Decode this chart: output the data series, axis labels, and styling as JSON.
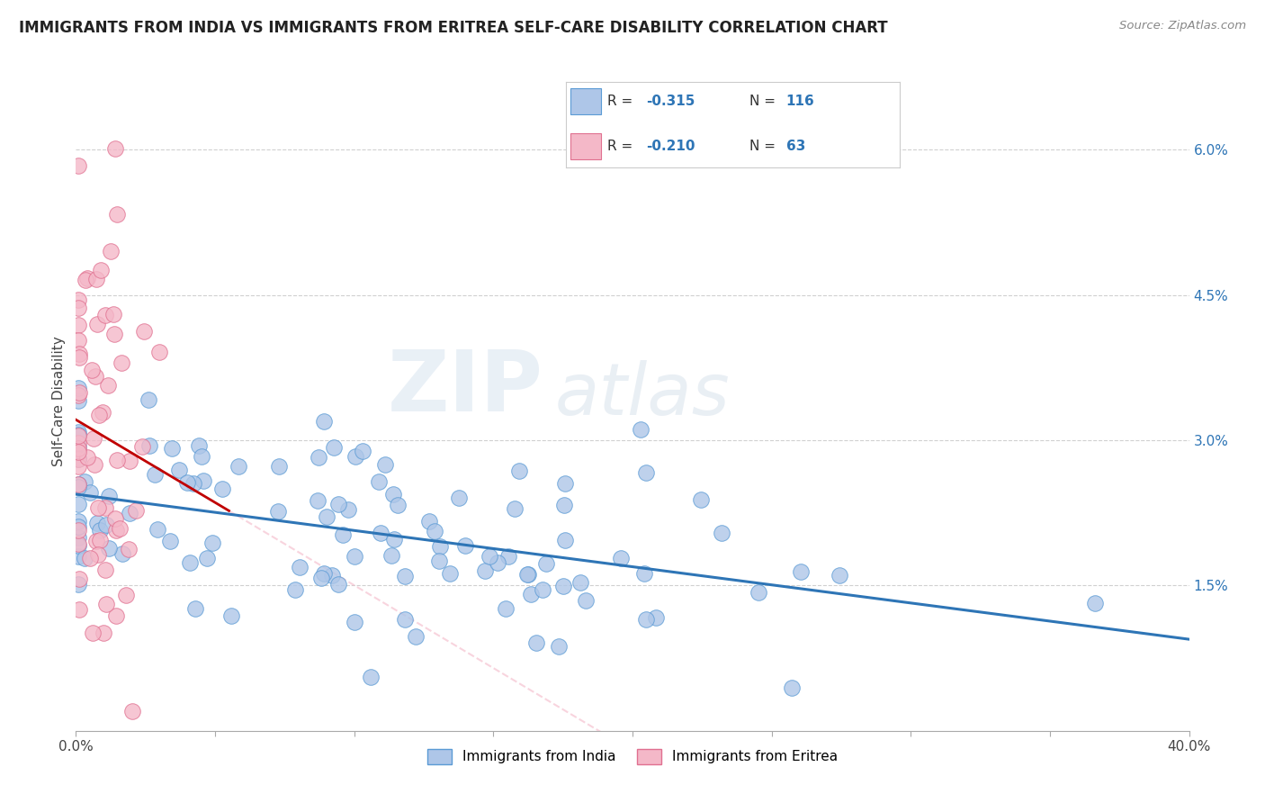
{
  "title": "IMMIGRANTS FROM INDIA VS IMMIGRANTS FROM ERITREA SELF-CARE DISABILITY CORRELATION CHART",
  "source": "Source: ZipAtlas.com",
  "ylabel": "Self-Care Disability",
  "xlim": [
    0.0,
    0.4
  ],
  "ylim": [
    0.0,
    0.068
  ],
  "india_color": "#aec6e8",
  "india_edge": "#5b9bd5",
  "eritrea_color": "#f4b8c8",
  "eritrea_edge": "#e07090",
  "india_R": -0.315,
  "india_N": 116,
  "eritrea_R": -0.21,
  "eritrea_N": 63,
  "india_line_color": "#2e75b6",
  "eritrea_line_color": "#c00000",
  "eritrea_line_color_faded": "#f4b8c8",
  "legend_R_color": "#2e75b6",
  "watermark_zip": "ZIP",
  "watermark_atlas": "atlas",
  "background_color": "#ffffff",
  "grid_color": "#d0d0d0",
  "title_fontsize": 12,
  "axis_fontsize": 11,
  "right_tick_color": "#2e75b6"
}
